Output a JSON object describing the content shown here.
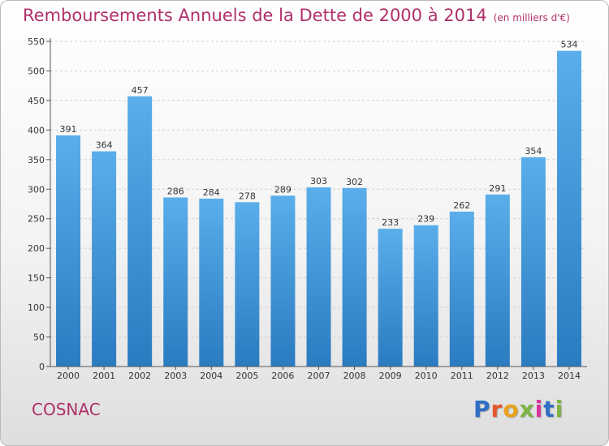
{
  "header": {
    "title": "Remboursements Annuels de la Dette de 2000 à 2014",
    "unit": "(en milliers d'€)"
  },
  "commune": "COSNAC",
  "logo": [
    "P",
    "r",
    "o",
    "x",
    "i",
    "t",
    "i"
  ],
  "colors": {
    "bar_top": "#5aaeea",
    "bar_bottom": "#2a7bc0",
    "title": "#b0306a",
    "grid": "#cfcfcf"
  },
  "chart_data": {
    "type": "bar",
    "title": "Remboursements Annuels de la Dette de 2000 à 2014",
    "xlabel": "",
    "ylabel": "",
    "categories": [
      "2000",
      "2001",
      "2002",
      "2003",
      "2004",
      "2005",
      "2006",
      "2007",
      "2008",
      "2009",
      "2010",
      "2011",
      "2012",
      "2013",
      "2014"
    ],
    "values": [
      391,
      364,
      457,
      286,
      284,
      278,
      289,
      303,
      302,
      233,
      239,
      262,
      291,
      354,
      534
    ],
    "ylim": [
      0,
      550
    ],
    "yticks": [
      0,
      50,
      100,
      150,
      200,
      250,
      300,
      350,
      400,
      450,
      500,
      550
    ],
    "grid": true,
    "data_labels": true
  }
}
